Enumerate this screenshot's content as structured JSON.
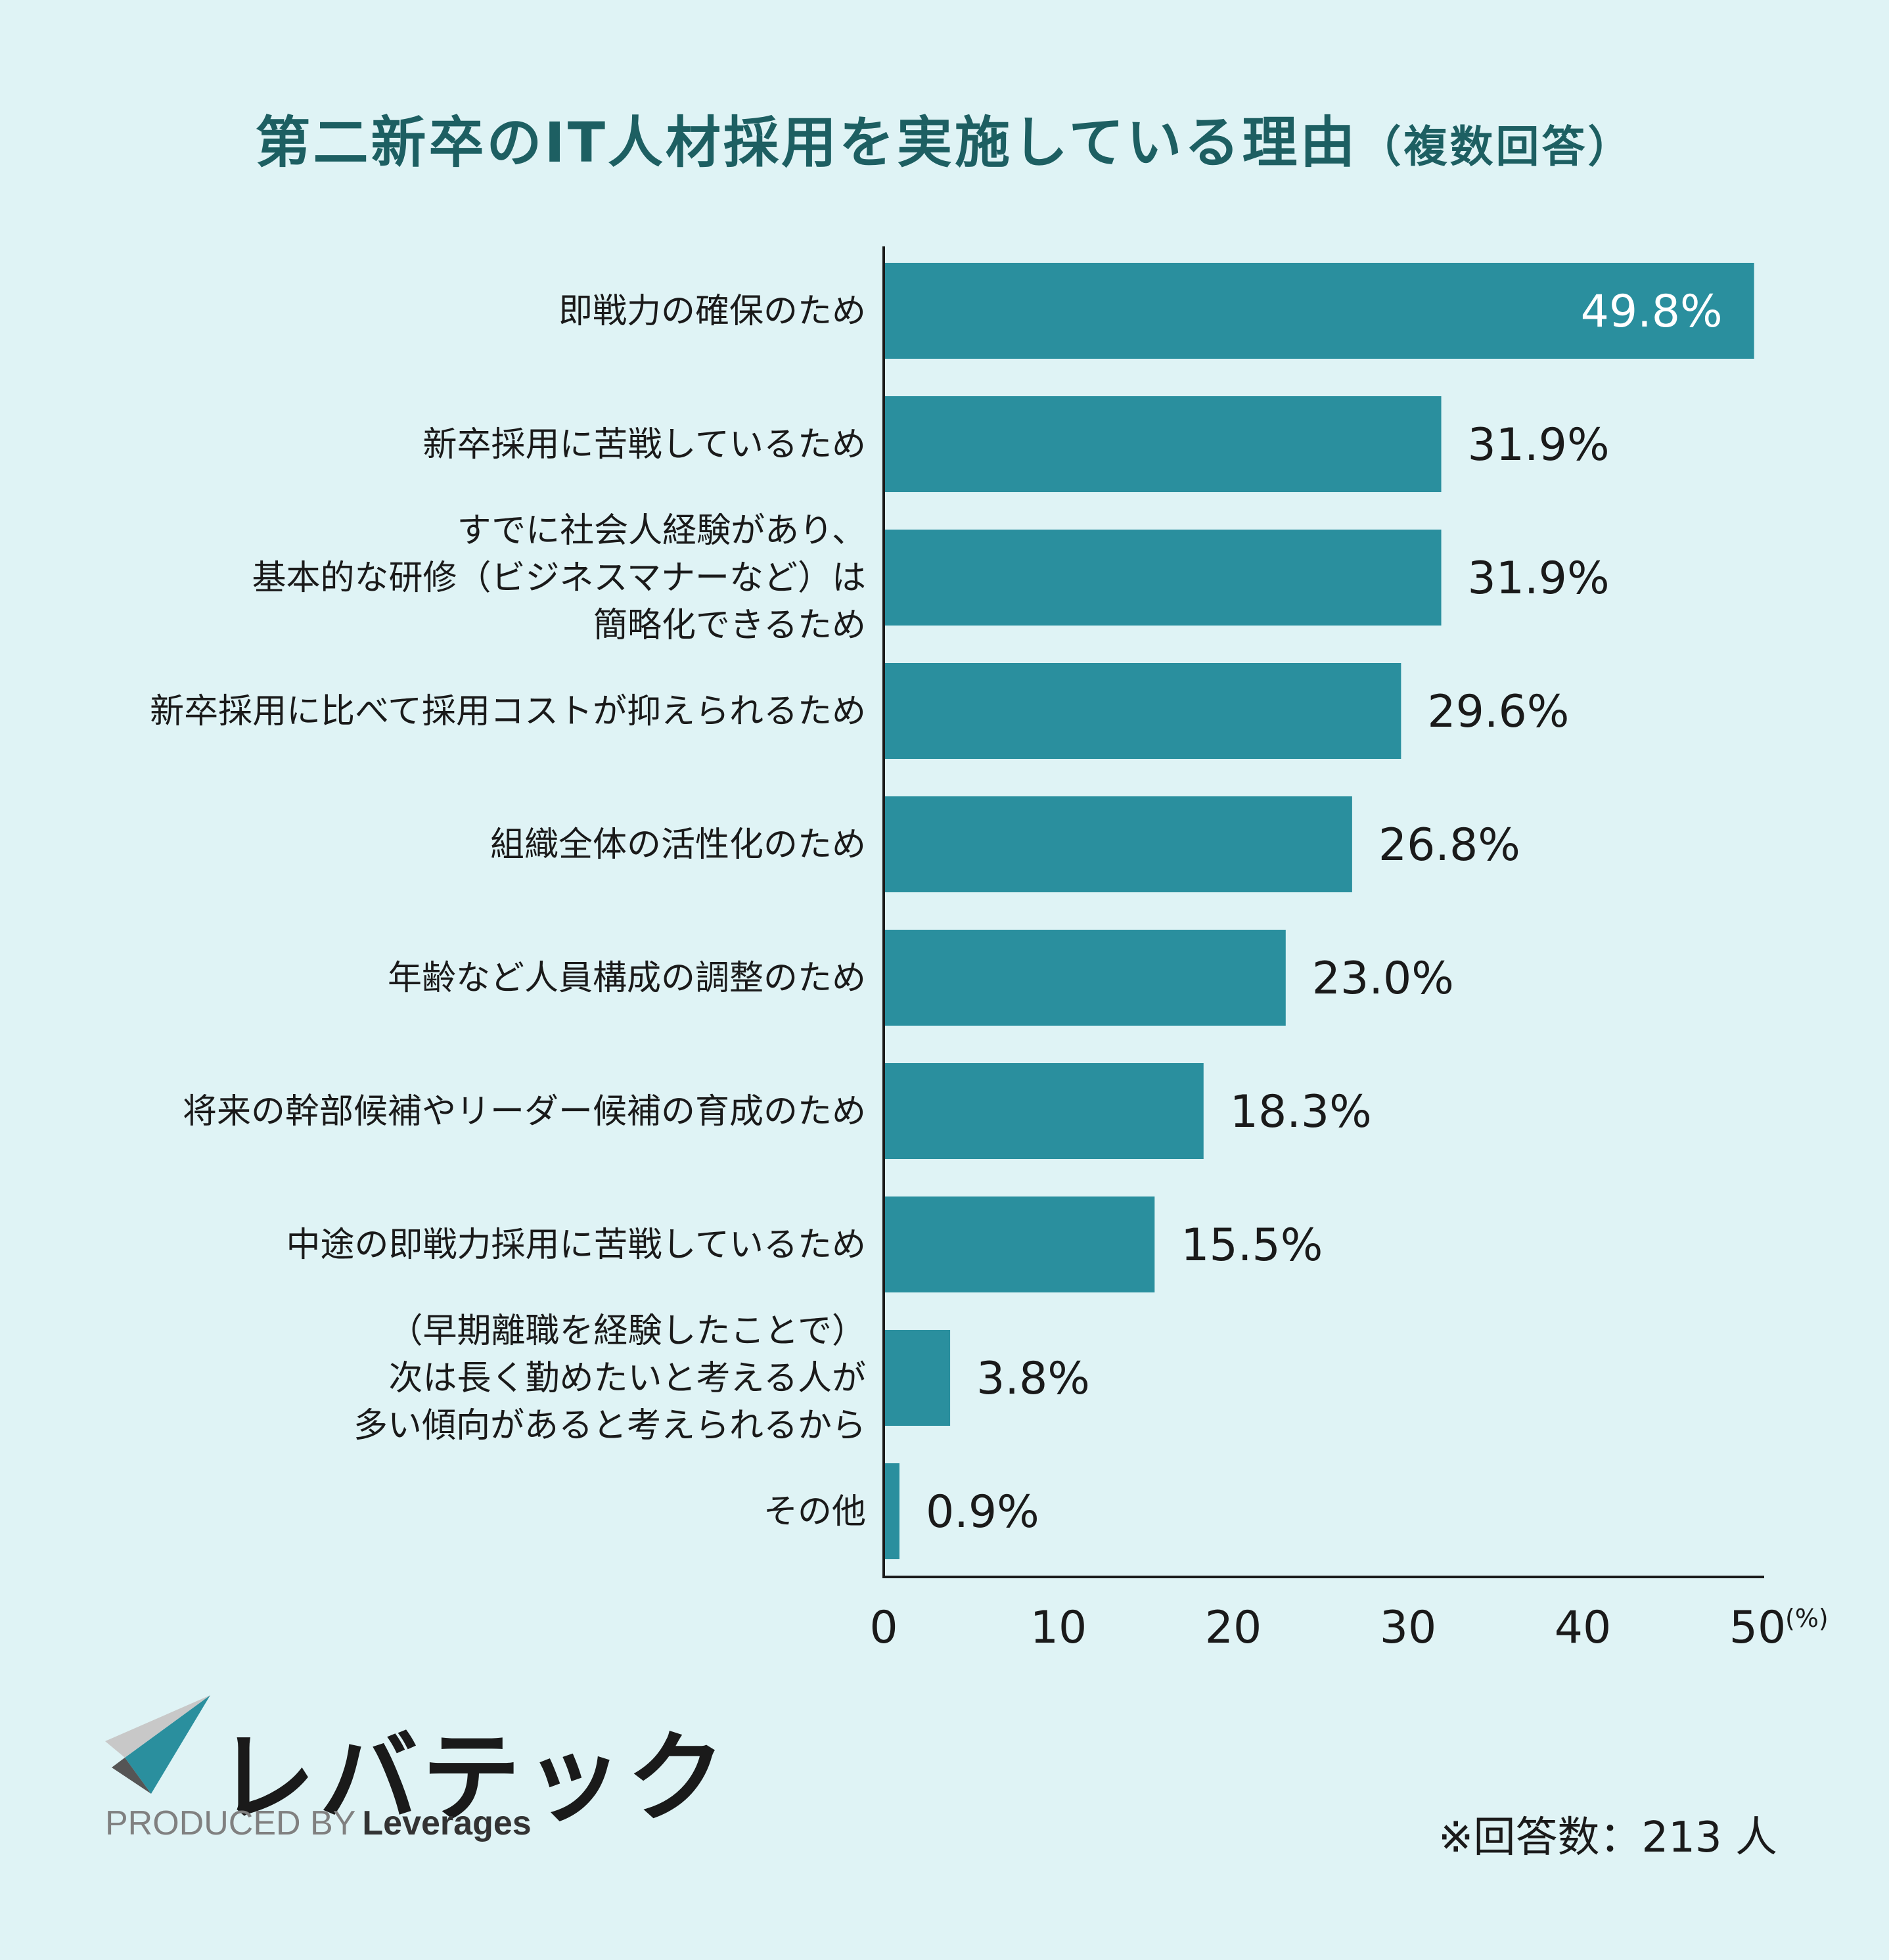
{
  "title": "第二新卒のIT人材採用を実施している理由",
  "title_sub": "（複数回答）",
  "chart_data": {
    "type": "bar",
    "orientation": "horizontal",
    "categories": [
      [
        "即戦力の確保のため"
      ],
      [
        "新卒採用に苦戦しているため"
      ],
      [
        "すでに社会人経験があり、",
        "基本的な研修（ビジネスマナーなど）は",
        "簡略化できるため"
      ],
      [
        "新卒採用に比べて採用コストが抑えられるため"
      ],
      [
        "組織全体の活性化のため"
      ],
      [
        "年齢など人員構成の調整のため"
      ],
      [
        "将来の幹部候補やリーダー候補の育成のため"
      ],
      [
        "中途の即戦力採用に苦戦しているため"
      ],
      [
        "（早期離職を経験したことで）",
        "次は長く勤めたいと考える人が",
        "多い傾向があると考えられるから"
      ],
      [
        "その他"
      ]
    ],
    "values": [
      49.8,
      31.9,
      31.9,
      29.6,
      26.8,
      23.0,
      18.3,
      15.5,
      3.8,
      0.9
    ],
    "value_labels": [
      "49.8%",
      "31.9%",
      "31.9%",
      "29.6%",
      "26.8%",
      "23.0%",
      "18.3%",
      "15.5%",
      "3.8%",
      "0.9%"
    ],
    "xlim": [
      0,
      50
    ],
    "xticks": [
      "0",
      "10",
      "20",
      "30",
      "40",
      "50"
    ],
    "xunit": "(%)",
    "grid": false,
    "bar_color": "#2a8f9e"
  },
  "logo": {
    "text": "レバテック",
    "produced_by": "PRODUCED BY",
    "brand": "Leverages"
  },
  "note": "※回答数：213 人"
}
